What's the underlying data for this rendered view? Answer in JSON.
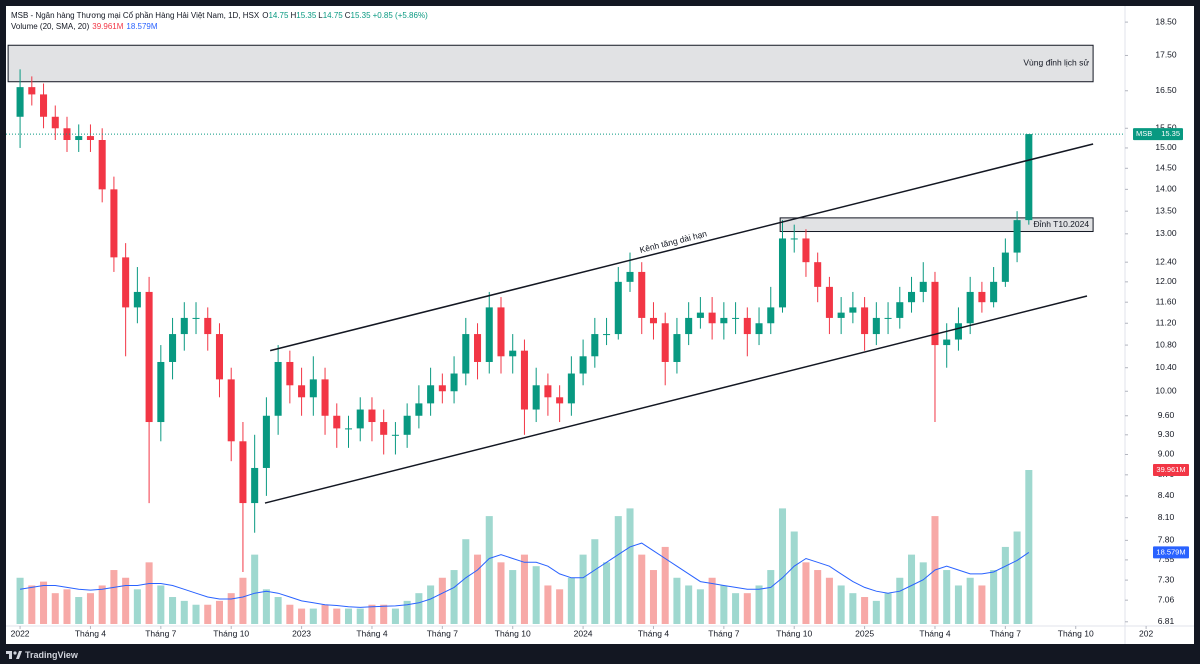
{
  "header": {
    "title": "MSB - Ngân hàng Thương mại Cổ phần Hàng Hải Việt Nam, 1D, HSX",
    "ohlc": [
      {
        "label": "O",
        "value": 14.75
      },
      {
        "label": "H",
        "value": 15.35
      },
      {
        "label": "L",
        "value": 14.75
      },
      {
        "label": "C",
        "value": 15.35
      }
    ],
    "change": "+0.85 (+5.86%)"
  },
  "chart_data": {
    "type": "candlestick",
    "symbol": "MSB",
    "last_price": 15.35,
    "log_scale": true,
    "grid": false,
    "up_color": "#089981",
    "down_color": "#f23645",
    "x": [
      0,
      0.5,
      1,
      1.5,
      2,
      2.5,
      3,
      3.5,
      4,
      4.5,
      5,
      5.5,
      6,
      6.5,
      7,
      7.5,
      8,
      8.5,
      9,
      9.5,
      10,
      10.5,
      11,
      11.5,
      12,
      12.5,
      13,
      13.5,
      14,
      14.5,
      15,
      15.5,
      16,
      16.5,
      17,
      17.5,
      18,
      18.5,
      19,
      19.5,
      20,
      20.5,
      21,
      21.5,
      22,
      22.5,
      23,
      23.5,
      24,
      24.5,
      25,
      25.5,
      26,
      26.5,
      27,
      27.5,
      28,
      28.5,
      29,
      29.5,
      30,
      30.5,
      31,
      31.5,
      32,
      32.5,
      33,
      33.5,
      34,
      34.5,
      35,
      35.5,
      36,
      36.5,
      37,
      37.5,
      38,
      38.5,
      39,
      39.5,
      40,
      40.5,
      41,
      41.5,
      42,
      42.5,
      43
    ],
    "open": [
      15.8,
      16.6,
      16.4,
      15.8,
      15.5,
      15.2,
      15.3,
      15.2,
      14.0,
      12.5,
      11.5,
      11.8,
      9.5,
      10.5,
      11.0,
      11.3,
      11.3,
      11.0,
      10.2,
      9.2,
      8.3,
      8.8,
      9.6,
      10.5,
      10.1,
      9.9,
      10.2,
      9.6,
      9.4,
      9.4,
      9.7,
      9.5,
      9.3,
      9.3,
      9.6,
      9.8,
      10.1,
      10.0,
      10.3,
      11.0,
      10.5,
      11.5,
      10.6,
      10.7,
      9.7,
      10.1,
      9.9,
      9.8,
      10.3,
      10.6,
      11.0,
      11.0,
      12.0,
      12.2,
      11.3,
      11.2,
      10.5,
      11.0,
      11.3,
      11.4,
      11.2,
      11.3,
      11.3,
      11.0,
      11.2,
      11.5,
      12.9,
      12.9,
      12.4,
      11.9,
      11.3,
      11.4,
      11.5,
      11.0,
      11.3,
      11.3,
      11.6,
      11.8,
      12.0,
      10.8,
      10.9,
      11.2,
      11.8,
      11.6,
      12.0,
      12.6,
      13.3
    ],
    "high": [
      17.1,
      16.9,
      16.7,
      16.1,
      15.8,
      15.6,
      15.6,
      15.5,
      14.3,
      12.8,
      12.3,
      12.1,
      10.8,
      11.3,
      11.6,
      11.6,
      11.5,
      11.2,
      10.4,
      9.5,
      9.3,
      9.9,
      10.8,
      10.7,
      10.4,
      10.6,
      10.4,
      9.8,
      9.6,
      9.9,
      9.9,
      9.7,
      9.5,
      9.8,
      10.1,
      10.4,
      10.3,
      10.6,
      11.3,
      11.2,
      11.8,
      11.7,
      11.0,
      10.9,
      10.4,
      10.3,
      10.1,
      10.6,
      10.9,
      11.3,
      11.3,
      12.3,
      12.6,
      12.4,
      11.6,
      11.4,
      11.3,
      11.6,
      11.7,
      11.7,
      11.6,
      11.6,
      11.5,
      11.5,
      11.9,
      13.3,
      13.2,
      13.1,
      12.6,
      12.1,
      11.7,
      11.8,
      11.7,
      11.6,
      11.6,
      11.9,
      12.1,
      12.4,
      12.2,
      11.2,
      11.5,
      12.1,
      12.0,
      12.3,
      12.9,
      13.5,
      15.35
    ],
    "low": [
      15.0,
      16.1,
      15.5,
      15.2,
      14.9,
      14.9,
      14.9,
      13.7,
      12.2,
      10.6,
      11.2,
      8.3,
      9.2,
      10.2,
      10.7,
      11.0,
      10.7,
      9.9,
      8.9,
      7.4,
      7.9,
      8.4,
      9.3,
      9.8,
      9.6,
      9.6,
      9.3,
      9.1,
      9.1,
      9.2,
      9.2,
      9.0,
      9.0,
      9.1,
      9.4,
      9.6,
      9.8,
      9.8,
      10.1,
      10.2,
      10.3,
      10.3,
      10.3,
      9.3,
      9.5,
      9.6,
      9.5,
      9.6,
      10.1,
      10.4,
      10.8,
      10.9,
      11.8,
      11.0,
      10.9,
      10.1,
      10.3,
      10.8,
      11.1,
      10.9,
      10.9,
      11.0,
      10.6,
      10.8,
      11.0,
      11.4,
      12.6,
      12.1,
      11.6,
      11.0,
      11.0,
      11.2,
      10.7,
      10.8,
      11.0,
      11.1,
      11.4,
      11.6,
      9.5,
      10.4,
      10.7,
      11.0,
      11.4,
      11.5,
      11.9,
      12.4,
      13.2
    ],
    "close": [
      16.6,
      16.4,
      15.8,
      15.5,
      15.2,
      15.3,
      15.2,
      14.0,
      12.5,
      11.5,
      11.8,
      9.5,
      10.5,
      11.0,
      11.3,
      11.3,
      11.0,
      10.2,
      9.2,
      8.3,
      8.8,
      9.6,
      10.5,
      10.1,
      9.9,
      10.2,
      9.6,
      9.4,
      9.4,
      9.7,
      9.5,
      9.3,
      9.3,
      9.6,
      9.8,
      10.1,
      10.0,
      10.3,
      11.0,
      10.5,
      11.5,
      10.6,
      10.7,
      9.7,
      10.1,
      9.9,
      9.8,
      10.3,
      10.6,
      11.0,
      11.0,
      12.0,
      12.2,
      11.3,
      11.2,
      10.5,
      11.0,
      11.3,
      11.4,
      11.2,
      11.3,
      11.3,
      11.0,
      11.2,
      11.5,
      12.9,
      12.9,
      12.4,
      11.9,
      11.3,
      11.4,
      11.5,
      11.0,
      11.3,
      11.3,
      11.6,
      11.8,
      12.0,
      10.8,
      10.9,
      11.2,
      11.8,
      11.6,
      12.0,
      12.6,
      13.3,
      15.35
    ],
    "xlim": [
      -0.6,
      47.1
    ],
    "xticks": [
      {
        "value": 0,
        "label": "2022"
      },
      {
        "value": 3,
        "label": "Tháng 4"
      },
      {
        "value": 6,
        "label": "Tháng 7"
      },
      {
        "value": 9,
        "label": "Tháng 10"
      },
      {
        "value": 12,
        "label": "2023"
      },
      {
        "value": 15,
        "label": "Tháng 4"
      },
      {
        "value": 18,
        "label": "Tháng 7"
      },
      {
        "value": 21,
        "label": "Tháng 10"
      },
      {
        "value": 24,
        "label": "2024"
      },
      {
        "value": 27,
        "label": "Tháng 4"
      },
      {
        "value": 30,
        "label": "Tháng 7"
      },
      {
        "value": 33,
        "label": "Tháng 10"
      },
      {
        "value": 36,
        "label": "2025"
      },
      {
        "value": 39,
        "label": "Tháng 4"
      },
      {
        "value": 42,
        "label": "Tháng 7"
      },
      {
        "value": 45,
        "label": "Tháng 10"
      },
      {
        "value": 48,
        "label": "202"
      }
    ],
    "ylim": [
      6.74,
      18.94
    ],
    "yticks": [
      {
        "value": 18.5,
        "label": "18.50"
      },
      {
        "value": 17.5,
        "label": "17.50"
      },
      {
        "value": 16.5,
        "label": "16.50"
      },
      {
        "value": 15.5,
        "label": "15.50"
      },
      {
        "value": 15,
        "label": "15.00"
      },
      {
        "value": 14.5,
        "label": "14.50"
      },
      {
        "value": 14,
        "label": "14.00"
      },
      {
        "value": 13.5,
        "label": "13.50"
      },
      {
        "value": 13,
        "label": "13.00"
      },
      {
        "value": 12.4,
        "label": "12.40"
      },
      {
        "value": 12,
        "label": "12.00"
      },
      {
        "value": 11.6,
        "label": "11.60"
      },
      {
        "value": 11.2,
        "label": "11.20"
      },
      {
        "value": 10.8,
        "label": "10.80"
      },
      {
        "value": 10.4,
        "label": "10.40"
      },
      {
        "value": 10,
        "label": "10.00"
      },
      {
        "value": 9.6,
        "label": "9.60"
      },
      {
        "value": 9.3,
        "label": "9.30"
      },
      {
        "value": 9,
        "label": "9.00"
      },
      {
        "value": 8.7,
        "label": "8.70"
      },
      {
        "value": 8.4,
        "label": "8.40"
      },
      {
        "value": 8.1,
        "label": "8.10"
      },
      {
        "value": 7.8,
        "label": "7.80"
      },
      {
        "value": 7.55,
        "label": "7.55"
      },
      {
        "value": 7.3,
        "label": "7.30"
      },
      {
        "value": 7.06,
        "label": "7.06"
      },
      {
        "value": 6.81,
        "label": "6.81"
      }
    ],
    "volume": {
      "name": "Volume (20, SMA, 20)",
      "up_color": "#9fd8cf",
      "down_color": "#f7a9a7",
      "tag_color": "#f23645",
      "values": [
        12,
        10,
        11,
        8,
        9,
        7,
        8,
        10,
        14,
        12,
        9,
        16,
        10,
        7,
        6,
        5,
        5,
        6,
        8,
        12,
        18,
        9,
        7,
        5,
        4,
        4,
        5,
        4,
        4,
        4,
        5,
        5,
        4,
        6,
        8,
        10,
        12,
        14,
        22,
        18,
        28,
        16,
        14,
        18,
        15,
        10,
        9,
        12,
        18,
        22,
        16,
        28,
        30,
        18,
        14,
        20,
        12,
        10,
        9,
        12,
        10,
        8,
        8,
        10,
        14,
        30,
        24,
        16,
        14,
        12,
        10,
        8,
        7,
        6,
        8,
        12,
        18,
        16,
        28,
        14,
        10,
        12,
        10,
        14,
        20,
        24,
        39.961
      ],
      "last_label": "39.961M"
    },
    "volume_sma": {
      "color": "#2962ff",
      "values": [
        9,
        9.5,
        10,
        10,
        9.5,
        9,
        8.8,
        9,
        9.5,
        10,
        10,
        10.5,
        10.5,
        10,
        9,
        8,
        7,
        6.5,
        6.5,
        7,
        8,
        8.5,
        8,
        7,
        6,
        5.5,
        5,
        4.8,
        4.5,
        4.3,
        4.5,
        4.6,
        4.7,
        5,
        5.5,
        6.5,
        8,
        9.5,
        12,
        14,
        17,
        18,
        17,
        16,
        16,
        15,
        13,
        12,
        12,
        14,
        16,
        18,
        20,
        21,
        19,
        17,
        15,
        13,
        11,
        10.5,
        10,
        9.5,
        9,
        9,
        9.5,
        12,
        15,
        17,
        16,
        15,
        13,
        11,
        9.5,
        8.5,
        8,
        8.5,
        10,
        11.5,
        14,
        15,
        14,
        13,
        13,
        13.5,
        15,
        16.5,
        18.579
      ],
      "last_label": "18.579M"
    },
    "annotations": {
      "zones": [
        {
          "label": "Vùng đỉnh lịch sử",
          "x": [
            -0.51,
            45.74
          ],
          "y": [
            16.75,
            17.8
          ]
        },
        {
          "label": "Đỉnh T10.2024",
          "x": [
            32.4,
            45.74
          ],
          "y": [
            13.05,
            13.35
          ]
        }
      ],
      "lines": [
        {
          "label": "Kênh tăng dài hạn",
          "x": [
            10.66,
            45.74
          ],
          "y": [
            10.7,
            15.1
          ]
        },
        {
          "x": [
            10.44,
            45.48
          ],
          "y": [
            8.3,
            11.72
          ]
        }
      ]
    }
  },
  "footer": {
    "brand": "TradingView"
  }
}
